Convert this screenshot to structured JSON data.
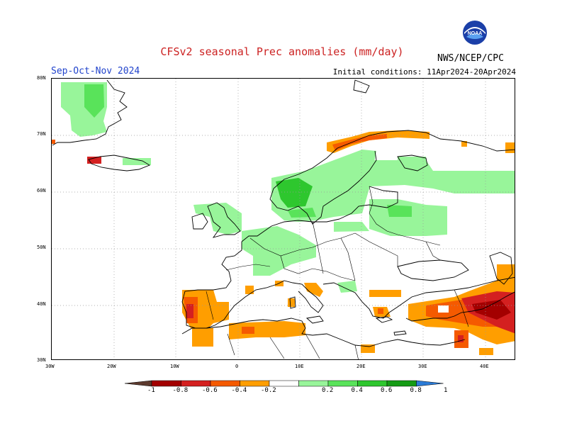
{
  "header": {
    "title": "CFSv2 seasonal Prec anomalies (mm/day)",
    "season": "Sep-Oct-Nov 2024",
    "initial_conditions": "Initial conditions: 11Apr2024-20Apr2024",
    "agency": "NWS/NCEP/CPC",
    "logo_text": "NOAA"
  },
  "map": {
    "projection": "lat-lon",
    "lon_range_deg": [
      -30,
      45
    ],
    "lat_range_deg": [
      30,
      80
    ],
    "lat_labels": [
      "80N",
      "70N",
      "60N",
      "50N",
      "40N",
      "30N"
    ],
    "lon_labels": [
      "30W",
      "20W",
      "10W",
      "0",
      "10E",
      "20E",
      "30E",
      "40E"
    ],
    "grid": true,
    "gridline_style": "dotted"
  },
  "legend": {
    "tick_labels": [
      "-1",
      "-0.8",
      "-0.6",
      "-0.4",
      "-0.2",
      "0.2",
      "0.4",
      "0.6",
      "0.8",
      "1"
    ],
    "colors": {
      "below_-1": "#5c3a2e",
      "-1_to_-0.8": "#a30000",
      "-0.8_to_-0.6": "#d42020",
      "-0.6_to_-0.4": "#f55a00",
      "-0.4_to_-0.2": "#ff9e00",
      "-0.2_to_0.2": "#ffffff",
      "0.2_to_0.4": "#98f59a",
      "0.4_to_0.6": "#59e35a",
      "0.6_to_0.8": "#2ec72e",
      "0.8_to_1": "#149b14",
      "above_1": "#2b7bd6"
    }
  }
}
